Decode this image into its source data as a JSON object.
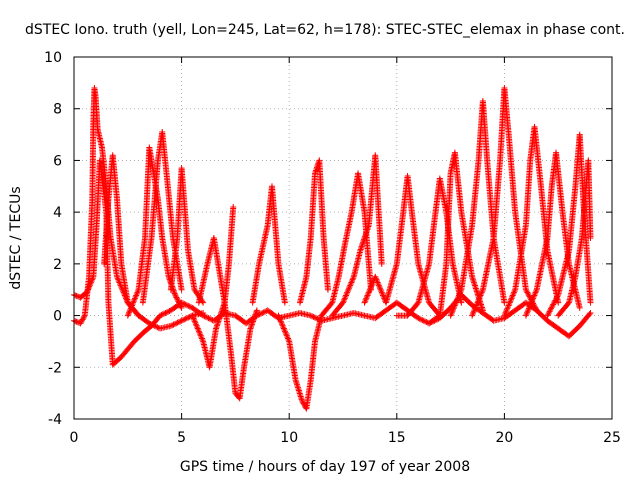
{
  "chart_data": {
    "type": "scatter",
    "title": "dSTEC Iono. truth (yell, Lon=245, Lat=62, h=178): STEC-STEC_elemax in phase cont.",
    "xlabel": "GPS time / hours of day 197 of year 2008",
    "ylabel": "dSTEC  / TECUs",
    "xlim": [
      0,
      25
    ],
    "ylim": [
      -4,
      10
    ],
    "xticks": [
      0,
      5,
      10,
      15,
      20,
      25
    ],
    "yticks": [
      -4,
      -2,
      0,
      2,
      4,
      6,
      8,
      10
    ],
    "grid": true,
    "legend": "none",
    "marker": "plus",
    "color": "#ff0000",
    "series": [
      {
        "x": [
          0.0,
          0.3,
          0.6,
          0.9,
          1.05,
          1.2,
          1.5,
          1.6,
          1.8,
          2.2,
          2.8,
          3.3,
          3.6,
          4.0,
          4.5,
          5.0,
          5.5,
          6.0,
          6.5,
          7.0,
          7.5,
          8.0,
          8.5,
          9.0,
          9.5,
          10.0,
          10.5,
          11.0,
          11.5,
          12.0,
          12.5,
          13.0,
          13.5,
          14.0,
          14.5,
          15.0,
          15.5,
          16.0,
          16.5,
          17.0,
          17.5,
          18.0,
          18.5,
          19.0,
          19.5,
          20.0,
          20.5,
          21.0,
          21.5,
          22.0,
          22.5,
          23.0,
          23.5,
          24.0
        ],
        "values": [
          0.8,
          0.7,
          0.9,
          1.5,
          3.5,
          6.0,
          4.0,
          0.5,
          -1.9,
          -1.6,
          -1.0,
          -0.6,
          -0.4,
          0.0,
          0.2,
          0.5,
          0.3,
          0.0,
          -0.2,
          0.1,
          0.0,
          -0.3,
          0.0,
          0.2,
          -0.1,
          0.0,
          0.1,
          0.0,
          -0.2,
          -0.1,
          0.0,
          0.1,
          0.0,
          -0.1,
          0.2,
          0.5,
          0.2,
          -0.1,
          -0.3,
          -0.1,
          0.3,
          0.8,
          0.4,
          0.1,
          -0.2,
          -0.1,
          0.2,
          0.5,
          0.2,
          -0.2,
          -0.5,
          -0.8,
          -0.4,
          0.1
        ]
      },
      {
        "x": [
          0.0,
          0.3,
          0.5,
          0.7,
          0.85,
          0.9,
          0.95,
          1.0,
          1.1,
          1.3,
          1.5,
          1.7,
          2.0,
          2.5,
          3.0,
          3.5,
          4.0,
          4.5,
          5.0,
          5.5,
          6.0
        ],
        "values": [
          -0.2,
          -0.3,
          0.0,
          1.5,
          4.5,
          7.5,
          8.8,
          8.5,
          7.2,
          6.5,
          5.0,
          3.0,
          1.5,
          0.5,
          0.0,
          -0.3,
          -0.5,
          -0.4,
          -0.2,
          0.0,
          0.1
        ]
      },
      {
        "x": [
          1.4,
          1.6,
          1.8,
          2.0,
          2.2,
          2.5,
          3.0
        ],
        "values": [
          2.0,
          4.5,
          6.2,
          4.5,
          2.0,
          0.5,
          0.0
        ]
      },
      {
        "x": [
          2.5,
          3.0,
          3.3,
          3.5,
          3.7,
          3.9,
          4.1,
          4.4,
          4.7,
          5.0
        ],
        "values": [
          0.0,
          1.0,
          3.0,
          6.5,
          5.5,
          4.5,
          3.0,
          1.5,
          0.8,
          0.3
        ]
      },
      {
        "x": [
          3.2,
          3.6,
          3.9,
          4.1,
          4.3,
          4.6,
          5.0
        ],
        "values": [
          0.5,
          3.0,
          6.0,
          7.1,
          5.5,
          3.0,
          1.0
        ]
      },
      {
        "x": [
          4.5,
          4.8,
          5.0,
          5.3,
          5.6,
          6.0
        ],
        "values": [
          1.0,
          3.0,
          5.7,
          2.5,
          1.0,
          0.5
        ]
      },
      {
        "x": [
          5.5,
          6.0,
          6.3,
          6.6,
          7.0,
          7.3,
          7.5,
          7.7,
          7.9,
          8.2,
          8.5
        ],
        "values": [
          0.0,
          -1.0,
          -2.0,
          -0.5,
          0.5,
          -1.5,
          -3.0,
          -3.2,
          -2.0,
          -0.5,
          0.2
        ]
      },
      {
        "x": [
          5.8,
          6.2,
          6.5,
          6.8,
          7.0,
          7.2,
          7.4
        ],
        "values": [
          0.5,
          2.0,
          3.0,
          1.5,
          0.5,
          2.0,
          4.2
        ]
      },
      {
        "x": [
          8.3,
          8.6,
          9.0,
          9.2,
          9.5,
          9.8
        ],
        "values": [
          0.5,
          2.0,
          3.5,
          5.0,
          2.0,
          0.5
        ]
      },
      {
        "x": [
          9.5,
          10.0,
          10.3,
          10.6,
          10.8,
          11.0,
          11.2,
          11.5
        ],
        "values": [
          0.0,
          -1.0,
          -2.5,
          -3.3,
          -3.6,
          -2.5,
          -1.0,
          0.0
        ]
      },
      {
        "x": [
          10.5,
          10.8,
          11.0,
          11.2,
          11.4,
          11.6,
          11.8
        ],
        "values": [
          0.5,
          1.5,
          3.0,
          5.5,
          6.0,
          3.0,
          1.0
        ]
      },
      {
        "x": [
          11.5,
          12.0,
          12.3,
          12.6,
          12.9,
          13.2,
          13.5,
          13.8
        ],
        "values": [
          0.0,
          0.5,
          1.5,
          2.8,
          4.0,
          5.5,
          4.0,
          1.0
        ]
      },
      {
        "x": [
          12.0,
          12.5,
          13.0,
          13.3,
          13.7,
          14.0,
          14.3
        ],
        "values": [
          0.0,
          0.5,
          1.5,
          2.5,
          3.5,
          6.2,
          2.0
        ]
      },
      {
        "x": [
          13.5,
          14.0,
          14.5,
          15.0,
          15.3,
          15.5,
          15.7,
          16.0,
          16.5,
          17.0
        ],
        "values": [
          0.5,
          1.5,
          0.5,
          2.0,
          4.0,
          5.4,
          4.0,
          2.0,
          0.5,
          0.0
        ]
      },
      {
        "x": [
          15.0,
          15.5,
          16.0,
          16.5,
          16.8,
          17.0,
          17.3,
          17.6,
          18.0
        ],
        "values": [
          0.0,
          0.0,
          0.5,
          2.0,
          4.0,
          5.3,
          4.0,
          2.0,
          0.5
        ]
      },
      {
        "x": [
          16.5,
          17.0,
          17.3,
          17.5,
          17.7,
          18.0,
          18.5,
          19.0
        ],
        "values": [
          -0.3,
          0.0,
          2.0,
          5.5,
          6.3,
          4.0,
          1.5,
          0.2
        ]
      },
      {
        "x": [
          17.5,
          18.0,
          18.5,
          18.8,
          19.0,
          19.2,
          19.5,
          20.0
        ],
        "values": [
          0.0,
          1.0,
          3.5,
          6.0,
          8.3,
          6.0,
          3.0,
          0.5
        ]
      },
      {
        "x": [
          18.5,
          19.0,
          19.5,
          19.8,
          20.0,
          20.2,
          20.5,
          21.0,
          21.5
        ],
        "values": [
          0.0,
          1.0,
          3.0,
          6.0,
          8.8,
          7.0,
          4.0,
          1.0,
          0.2
        ]
      },
      {
        "x": [
          20.0,
          20.5,
          21.0,
          21.2,
          21.4,
          21.7,
          22.0,
          22.5
        ],
        "values": [
          0.0,
          1.0,
          3.5,
          6.0,
          7.3,
          5.0,
          2.5,
          0.5
        ]
      },
      {
        "x": [
          21.0,
          21.5,
          22.0,
          22.2,
          22.4,
          22.7,
          23.0,
          23.5
        ],
        "values": [
          0.0,
          1.0,
          3.0,
          5.0,
          6.3,
          4.0,
          2.0,
          0.3
        ]
      },
      {
        "x": [
          22.0,
          22.5,
          23.0,
          23.3,
          23.5,
          23.7,
          24.0
        ],
        "values": [
          0.0,
          0.8,
          2.5,
          5.0,
          7.0,
          4.0,
          0.5
        ]
      },
      {
        "x": [
          22.5,
          23.0,
          23.3,
          23.6,
          23.9,
          24.0
        ],
        "values": [
          0.0,
          0.5,
          1.5,
          3.0,
          6.0,
          3.0
        ]
      }
    ]
  }
}
